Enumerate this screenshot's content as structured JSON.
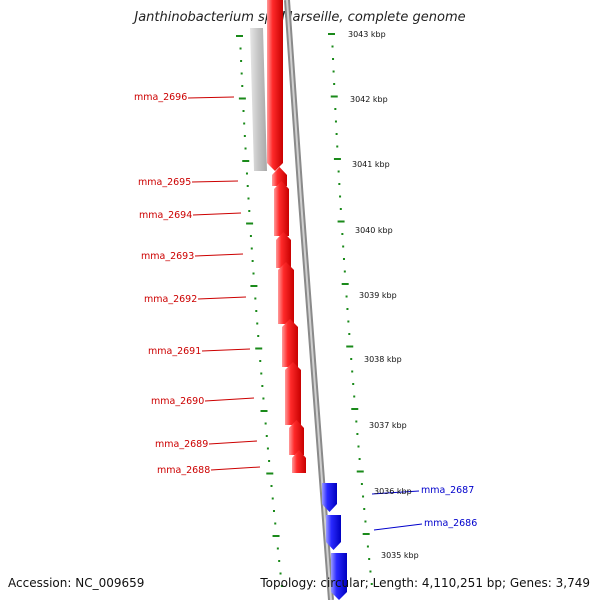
{
  "map": {
    "title": "Janthinobacterium sp. Marseille, complete genome",
    "accession": "Accession: NC_009659",
    "topology": "Topology: circular; Length: 4,110,251 bp; Genes: 3,749"
  },
  "ruler_labels": [
    "3043 kbp",
    "3042 kbp",
    "3041 kbp",
    "3040 kbp",
    "3039 kbp",
    "3038 kbp",
    "3037 kbp",
    "3036 kbp",
    "3035 kbp"
  ],
  "genes": [
    {
      "name": "mma_2696",
      "strand": "reverse",
      "color": "#cc0000"
    },
    {
      "name": "mma_2695",
      "strand": "reverse",
      "color": "#cc0000"
    },
    {
      "name": "mma_2694",
      "strand": "reverse",
      "color": "#cc0000"
    },
    {
      "name": "mma_2693",
      "strand": "reverse",
      "color": "#cc0000"
    },
    {
      "name": "mma_2692",
      "strand": "reverse",
      "color": "#cc0000"
    },
    {
      "name": "mma_2691",
      "strand": "reverse",
      "color": "#cc0000"
    },
    {
      "name": "mma_2690",
      "strand": "reverse",
      "color": "#cc0000"
    },
    {
      "name": "mma_2689",
      "strand": "reverse",
      "color": "#cc0000"
    },
    {
      "name": "mma_2688",
      "strand": "reverse",
      "color": "#cc0000"
    },
    {
      "name": "mma_2687",
      "strand": "forward",
      "color": "#0000cc"
    },
    {
      "name": "mma_2686",
      "strand": "forward",
      "color": "#0000cc"
    }
  ],
  "colors": {
    "reverse_strand": "#ff1a1a",
    "forward_strand": "#1a1aff",
    "backbone": "#8a8a8a",
    "ticks": "#1a8a1a",
    "label_reverse": "#cc0000",
    "label_forward": "#0000cc"
  }
}
